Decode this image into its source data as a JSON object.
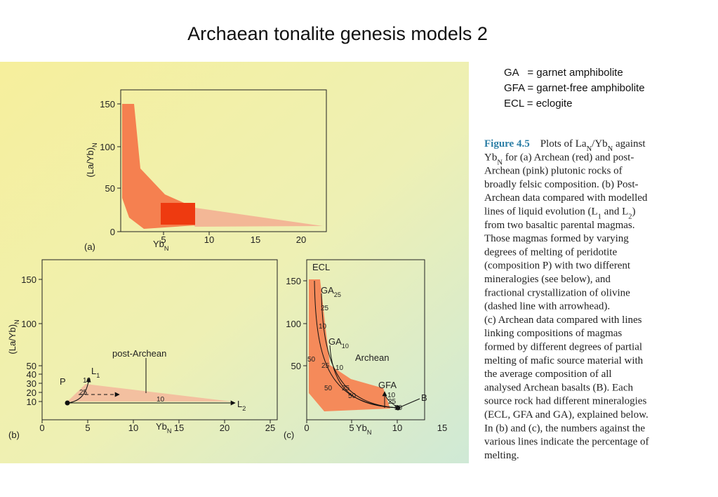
{
  "title": "Archaean tonalite genesis models 2",
  "legend": [
    "GA   = garnet amphibolite",
    "GFA = garnet-free amphibolite",
    "ECL = eclogite"
  ],
  "caption": [
    [
      {
        "bold": "Figure 4.5"
      },
      {
        "text": "    Plots of La"
      },
      {
        "sub": "N"
      },
      {
        "text": "/Yb"
      },
      {
        "sub": "N"
      },
      {
        "text": " against"
      }
    ],
    [
      {
        "text": "Yb"
      },
      {
        "sub": "N"
      },
      {
        "text": " for (a) Archean (red) and post-"
      }
    ],
    [
      {
        "text": "Archean (pink) plutonic rocks of"
      }
    ],
    [
      {
        "text": "broadly felsic composition. (b) Post-"
      }
    ],
    [
      {
        "text": "Archean data compared with modelled"
      }
    ],
    [
      {
        "text": "lines of liquid evolution (L"
      },
      {
        "sub": "1"
      },
      {
        "text": " and L"
      },
      {
        "sub": "2"
      },
      {
        "text": ")"
      }
    ],
    [
      {
        "text": "from two basaltic parental magmas."
      }
    ],
    [
      {
        "text": "Those magmas formed by varying"
      }
    ],
    [
      {
        "text": "degrees of melting of peridotite"
      }
    ],
    [
      {
        "text": "(composition P) with two different"
      }
    ],
    [
      {
        "text": "mineralogies (see below), and"
      }
    ],
    [
      {
        "text": "fractional crystallization of olivine"
      }
    ],
    [
      {
        "text": "(dashed line with arrowhead)."
      }
    ],
    [
      {
        "text": "(c) Archean data compared with lines"
      }
    ],
    [
      {
        "text": "linking compositions of magmas"
      }
    ],
    [
      {
        "text": "formed by different degrees of partial"
      }
    ],
    [
      {
        "text": "melting of mafic source material with"
      }
    ],
    [
      {
        "text": "the average composition of all"
      }
    ],
    [
      {
        "text": "analysed Archean basalts (B). Each"
      }
    ],
    [
      {
        "text": "source rock had different mineralogies"
      }
    ],
    [
      {
        "text": "(ECL, GFA and GA), explained below."
      }
    ],
    [
      {
        "text": "In (b) and (c), the numbers against the"
      }
    ],
    [
      {
        "text": "various lines indicate the percentage of"
      }
    ],
    [
      {
        "text": "melting."
      }
    ]
  ],
  "panels": [
    {
      "label": "(a)",
      "yticks": [
        150,
        100,
        50,
        0
      ],
      "xticks": [
        5,
        10,
        15,
        20
      ],
      "xlabel": [
        {
          "text": "Yb"
        },
        {
          "sub": "N"
        }
      ],
      "ylabel": [
        {
          "text": "(La/Yb)"
        },
        {
          "sub": "N"
        }
      ]
    },
    {
      "label": "(b)",
      "yticks": [
        150,
        100,
        50,
        40,
        30,
        20,
        10
      ],
      "xticks": [
        0,
        5,
        10,
        15,
        20,
        25
      ],
      "xlabel": [
        {
          "text": "Yb"
        },
        {
          "sub": "N"
        }
      ],
      "ylabel": [
        {
          "text": "(La/Yb)"
        },
        {
          "sub": "N"
        }
      ],
      "annotations": [
        [
          {
            "text": "P"
          }
        ],
        [
          {
            "text": "L"
          },
          {
            "sub": "1"
          }
        ],
        [
          {
            "text": "10"
          }
        ],
        [
          {
            "text": "25"
          }
        ],
        [
          {
            "text": "10"
          }
        ],
        [
          {
            "text": "L"
          },
          {
            "sub": "2"
          }
        ],
        [
          {
            "text": "post-Archean"
          }
        ]
      ]
    },
    {
      "label": "(c)",
      "yticks": [
        150,
        100,
        50
      ],
      "xticks": [
        0,
        5,
        10,
        15
      ],
      "xlabel": [
        {
          "text": "Yb"
        },
        {
          "sub": "N"
        }
      ],
      "annotations": [
        [
          {
            "text": "ECL"
          }
        ],
        [
          {
            "text": "GA"
          },
          {
            "sub": "25"
          }
        ],
        [
          {
            "text": "25"
          }
        ],
        [
          {
            "text": "10"
          }
        ],
        [
          {
            "text": "GA"
          },
          {
            "sub": "10"
          }
        ],
        [
          {
            "text": "50"
          }
        ],
        [
          {
            "text": "25"
          }
        ],
        [
          {
            "text": "10"
          }
        ],
        [
          {
            "text": "50"
          }
        ],
        [
          {
            "text": "25"
          }
        ],
        [
          {
            "text": "50"
          }
        ],
        [
          {
            "text": "Archean"
          }
        ],
        [
          {
            "text": "GFA"
          }
        ],
        [
          {
            "text": "10"
          }
        ],
        [
          {
            "text": "25"
          }
        ],
        [
          {
            "text": "50"
          }
        ],
        [
          {
            "text": "B"
          }
        ]
      ]
    }
  ]
}
